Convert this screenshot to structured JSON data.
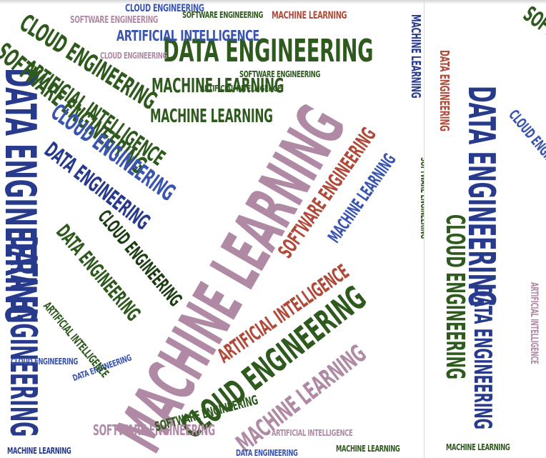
{
  "words": {
    "data_engineering": "Data Engineering",
    "machine_learning": "Machine Learning",
    "cloud_engineering": "Cloud Engineering",
    "software_engineering": "Software Engineering",
    "artificial_intelligence": "Artificial Intelligence"
  },
  "colors": {
    "dark_blue": "#283a8c",
    "mid_blue": "#3a55b0",
    "dark_green": "#2f5a1e",
    "mauve": "#b08aa5",
    "rust": "#b04a3a",
    "background": "#ffffff"
  }
}
